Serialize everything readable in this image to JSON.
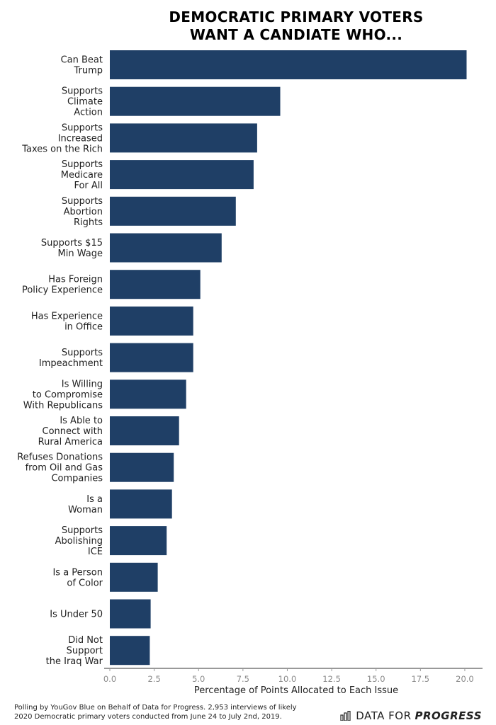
{
  "chart_data": {
    "type": "bar",
    "orientation": "horizontal",
    "title_lines": [
      "DEMOCRATIC PRIMARY VOTERS",
      "WANT A CANDIATE WHO..."
    ],
    "categories": [
      [
        "Can Beat",
        "Trump"
      ],
      [
        "Supports",
        "Climate",
        "Action"
      ],
      [
        "Supports",
        "Increased",
        "Taxes on the Rich"
      ],
      [
        "Supports",
        "Medicare",
        "For All"
      ],
      [
        "Supports",
        "Abortion",
        "Rights"
      ],
      [
        "Supports $15",
        "Min Wage"
      ],
      [
        "Has Foreign",
        "Policy Experience"
      ],
      [
        "Has Experience",
        "in Office"
      ],
      [
        "Supports",
        "Impeachment"
      ],
      [
        "Is Willing",
        "to Compromise",
        "With Republicans"
      ],
      [
        "Is Able to",
        "Connect with",
        "Rural America"
      ],
      [
        "Refuses Donations",
        "from Oil and Gas",
        "Companies"
      ],
      [
        "Is a",
        "Woman"
      ],
      [
        "Supports",
        "Abolishing",
        "ICE"
      ],
      [
        "Is a Person",
        "of Color"
      ],
      [
        "Is Under 50"
      ],
      [
        "Did Not",
        "Support",
        "the Iraq War"
      ]
    ],
    "values": [
      20.1,
      9.6,
      8.3,
      8.1,
      7.1,
      6.3,
      5.1,
      4.7,
      4.7,
      4.3,
      3.9,
      3.6,
      3.5,
      3.2,
      2.7,
      2.3,
      2.25
    ],
    "xlabel": "Percentage of Points Allocated to Each Issue",
    "xlim": [
      0,
      21
    ],
    "xticks": [
      0,
      2.5,
      5,
      7.5,
      10,
      12.5,
      15,
      17.5,
      20
    ],
    "xtick_labels": [
      "0.0",
      "2.5",
      "5.0",
      "7.5",
      "10.0",
      "12.5",
      "15.0",
      "17.5",
      "20.0"
    ],
    "bar_color": "#1f3f66",
    "grid": false
  },
  "footnote": {
    "line1": "Polling by YouGov Blue on Behalf of Data for Progress. 2,953 interviews of likely",
    "line2": "2020 Democratic primary voters conducted from June 24 to July 2nd, 2019."
  },
  "brand": {
    "part1": "DATA FOR",
    "part2": "PROGRESS",
    "icon": "bar-chart-logo-icon"
  }
}
